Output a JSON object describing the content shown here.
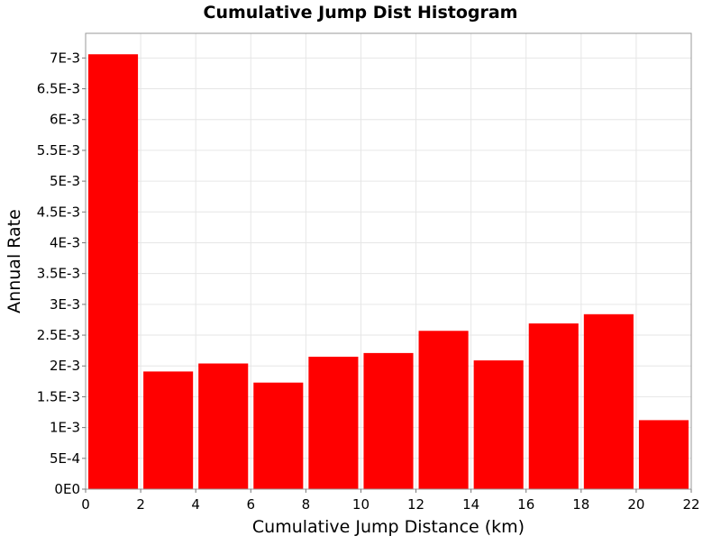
{
  "chart_data": {
    "type": "bar",
    "title": "Cumulative Jump Dist Histogram",
    "xlabel": "Cumulative Jump Distance (km)",
    "ylabel": "Annual Rate",
    "xlim": [
      0,
      22
    ],
    "ylim": [
      0,
      0.0074
    ],
    "x_ticks": [
      "0",
      "2",
      "4",
      "6",
      "8",
      "10",
      "12",
      "14",
      "16",
      "18",
      "20",
      "22"
    ],
    "y_ticks": [
      "0E0",
      "5E-4",
      "1E-3",
      "1.5E-3",
      "2E-3",
      "2.5E-3",
      "3E-3",
      "3.5E-3",
      "4E-3",
      "4.5E-3",
      "5E-3",
      "5.5E-3",
      "6E-3",
      "6.5E-3",
      "7E-3"
    ],
    "bin_width": 2,
    "bins": [
      {
        "start": 0,
        "value": 0.00706
      },
      {
        "start": 2,
        "value": 0.00191
      },
      {
        "start": 4,
        "value": 0.00204
      },
      {
        "start": 6,
        "value": 0.00173
      },
      {
        "start": 8,
        "value": 0.00215
      },
      {
        "start": 10,
        "value": 0.00221
      },
      {
        "start": 12,
        "value": 0.00257
      },
      {
        "start": 14,
        "value": 0.00209
      },
      {
        "start": 16,
        "value": 0.00269
      },
      {
        "start": 18,
        "value": 0.00284
      },
      {
        "start": 20,
        "value": 0.00112
      }
    ],
    "bar_color": "#ff0000",
    "grid": true
  }
}
